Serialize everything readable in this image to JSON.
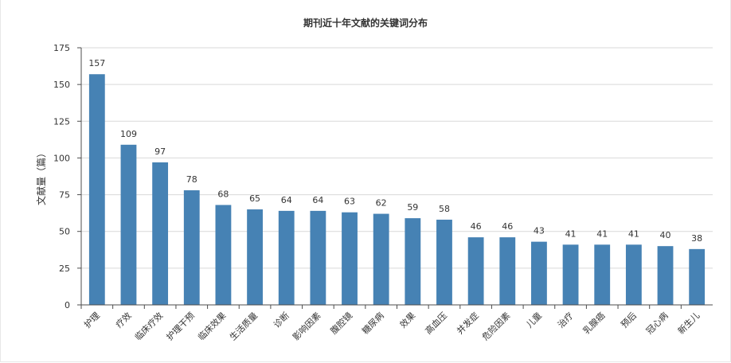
{
  "chart_data": {
    "type": "bar",
    "title": "期刊近十年文献的关键词分布",
    "xlabel": "",
    "ylabel": "文献量（篇）",
    "ylim": [
      0,
      175
    ],
    "yticks": [
      0,
      25,
      50,
      75,
      100,
      125,
      150,
      175
    ],
    "grid": true,
    "categories": [
      "护理",
      "疗效",
      "临床疗效",
      "护理干预",
      "临床效果",
      "生活质量",
      "诊断",
      "影响因素",
      "腹腔镜",
      "糖尿病",
      "效果",
      "高血压",
      "并发症",
      "危险因素",
      "儿童",
      "治疗",
      "乳腺癌",
      "预后",
      "冠心病",
      "新生儿"
    ],
    "values": [
      157,
      109,
      97,
      78,
      68,
      65,
      64,
      64,
      63,
      62,
      59,
      58,
      46,
      46,
      43,
      41,
      41,
      41,
      40,
      38
    ],
    "colors": {
      "bar": "#4682b4",
      "axis": "#4d4d4d",
      "grid": "#d9d9d9"
    }
  }
}
